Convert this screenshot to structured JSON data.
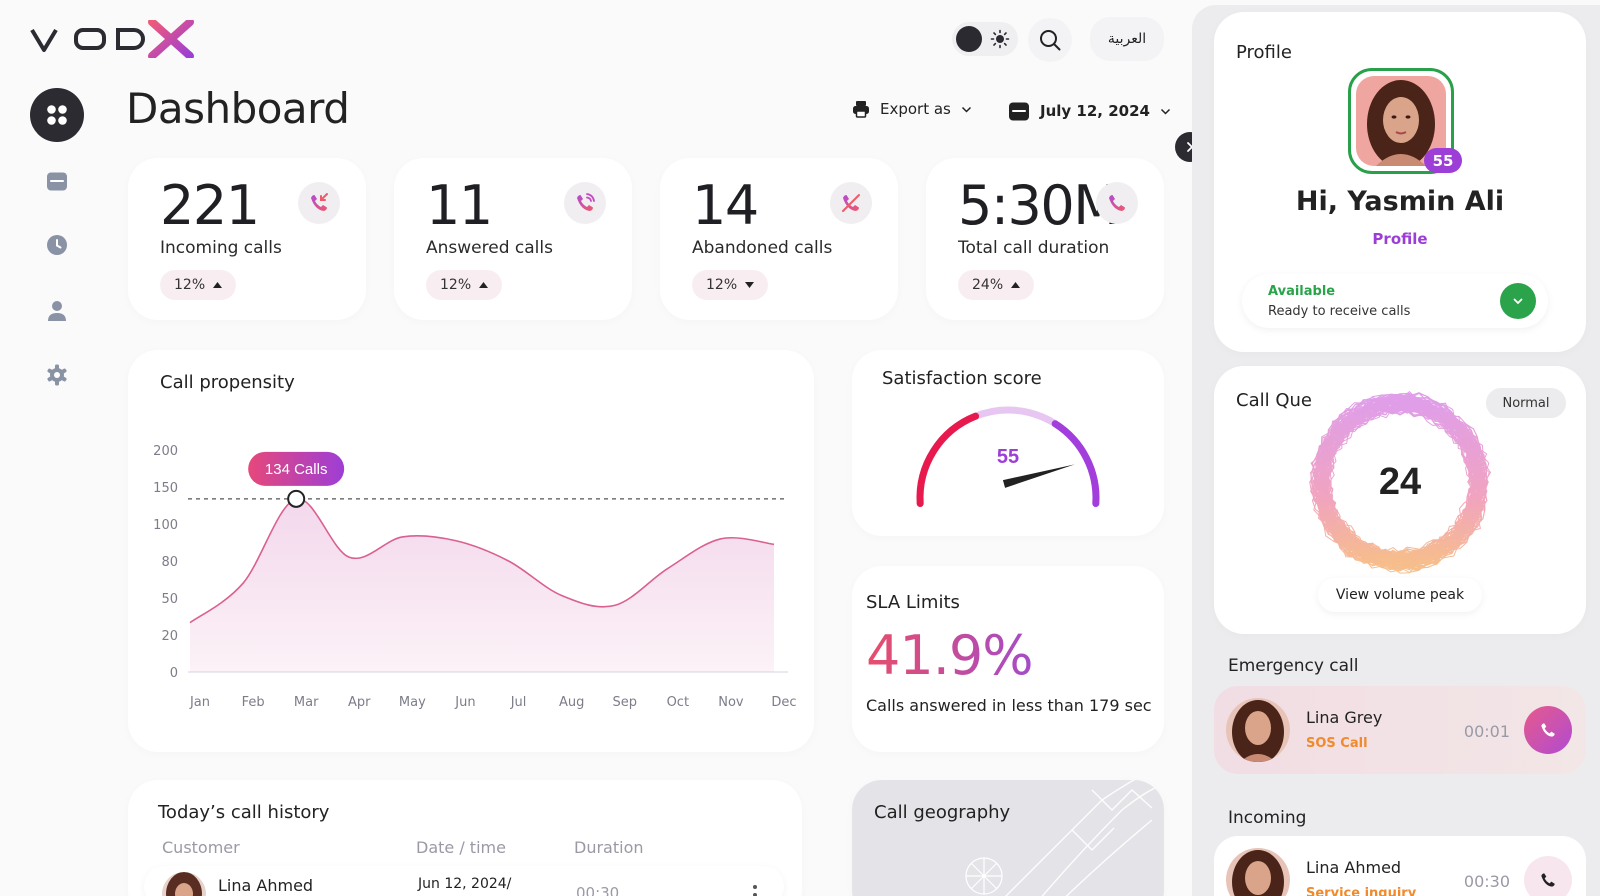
{
  "header": {
    "logo_text": "VODX",
    "language_button": "العربية"
  },
  "page": {
    "title": "Dashboard",
    "export_label": "Export as",
    "date_label": "July 12, 2024"
  },
  "stats": [
    {
      "value": "221",
      "label": "Incoming calls",
      "change": "12%",
      "trend": "up"
    },
    {
      "value": "11",
      "label": "Answered calls",
      "change": "12%",
      "trend": "up"
    },
    {
      "value": "14",
      "label": "Abandoned calls",
      "change": "12%",
      "trend": "down"
    },
    {
      "value": "5:30M",
      "label": "Total call duration",
      "change": "24%",
      "trend": "up"
    }
  ],
  "call_propensity": {
    "title": "Call propensity",
    "tooltip": "134 Calls"
  },
  "chart_data": {
    "type": "area",
    "title": "Call propensity",
    "categories": [
      "Jan",
      "Feb",
      "Mar",
      "Apr",
      "May",
      "Jun",
      "Jul",
      "Aug",
      "Sep",
      "Oct",
      "Nov",
      "Dec"
    ],
    "y_tick_labels": [
      "200",
      "150",
      "100",
      "80",
      "50",
      "20",
      "0"
    ],
    "values": [
      30,
      62,
      134,
      82,
      93,
      91,
      80,
      52,
      44,
      74,
      92,
      89
    ],
    "highlight": {
      "category": "Mar",
      "value": 134,
      "label": "134 Calls"
    },
    "reference_line": 134,
    "colors": {
      "line": "#d9608f",
      "fill_top": "#f4dcec",
      "fill_bottom": "#fbf1f6"
    }
  },
  "satisfaction": {
    "title": "Satisfaction score",
    "value": "55",
    "score": 55,
    "max": 100
  },
  "sla": {
    "title": "SLA Limits",
    "value": "41.9%",
    "description": "Calls answered in less than 179 sec"
  },
  "history": {
    "title": "Today’s call history",
    "columns": [
      "Customer",
      "Date / time",
      "Duration"
    ],
    "rows": [
      {
        "customer": "Lina Ahmed",
        "datetime": "Jun 12, 2024/",
        "duration": "00:30"
      }
    ]
  },
  "geography": {
    "title": "Call geography"
  },
  "profile": {
    "title": "Profile",
    "badge": "55",
    "greeting": "Hi, Yasmin Ali",
    "link": "Profile",
    "status_title": "Available",
    "status_desc": "Ready to receive calls"
  },
  "call_queue": {
    "title": "Call Que",
    "mode": "Normal",
    "count": "24",
    "button": "View volume peak"
  },
  "emergency": {
    "title": "Emergency call",
    "name": "Lina Grey",
    "type": "SOS Call",
    "time": "00:01"
  },
  "incoming": {
    "title": "Incoming",
    "name": "Lina Ahmed",
    "type": "Service inquiry",
    "time": "00:30"
  },
  "colors": {
    "accent_purple": "#9d3ed6",
    "available_green": "#2aa34a",
    "sos_orange": "#f08a2c",
    "pink": "#e55a8a"
  }
}
